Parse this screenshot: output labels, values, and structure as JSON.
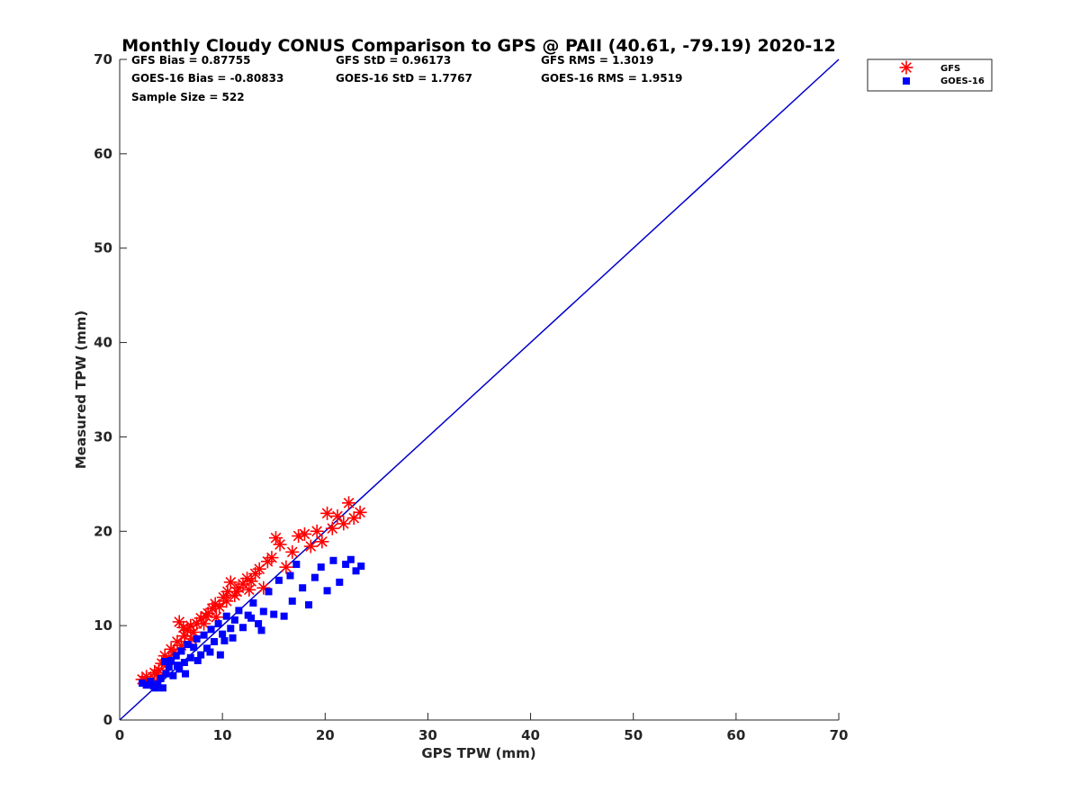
{
  "chart_data": {
    "type": "scatter",
    "title": "Monthly Cloudy CONUS Comparison to GPS @ PAII (40.61, -79.19) 2020-12",
    "xlabel": "GPS TPW (mm)",
    "ylabel": "Measured TPW (mm)",
    "xlim": [
      0,
      70
    ],
    "ylim": [
      0,
      70
    ],
    "xticks": [
      "0",
      "10",
      "20",
      "30",
      "40",
      "50",
      "60",
      "70"
    ],
    "yticks": [
      "0",
      "10",
      "20",
      "30",
      "40",
      "50",
      "60",
      "70"
    ],
    "grid": false,
    "legend_position": "top-right",
    "stats": {
      "gfs_bias": "GFS Bias = 0.87755",
      "gfs_std": "GFS StD = 0.96173",
      "gfs_rms": "GFS RMS = 1.3019",
      "goes_bias": "GOES-16 Bias = -0.80833",
      "goes_std": "GOES-16 StD = 1.7767",
      "goes_rms": "GOES-16 RMS = 1.9519",
      "sample_size": "Sample Size = 522"
    },
    "reference_line": {
      "x": [
        0,
        70
      ],
      "y": [
        0,
        70
      ],
      "color": "#0000cc"
    },
    "series": [
      {
        "name": "GFS",
        "marker": "asterisk",
        "color": "#ff0000",
        "points": [
          [
            2.2,
            4.3
          ],
          [
            2.6,
            4.6
          ],
          [
            3.0,
            4.2
          ],
          [
            3.4,
            5.0
          ],
          [
            3.8,
            5.3
          ],
          [
            4.1,
            6.0
          ],
          [
            4.4,
            6.8
          ],
          [
            4.8,
            6.5
          ],
          [
            5.0,
            7.5
          ],
          [
            5.3,
            7.2
          ],
          [
            5.6,
            8.3
          ],
          [
            5.8,
            10.4
          ],
          [
            6.0,
            7.9
          ],
          [
            6.3,
            8.9
          ],
          [
            6.6,
            9.5
          ],
          [
            6.9,
            10.0
          ],
          [
            7.2,
            9.3
          ],
          [
            7.5,
            10.2
          ],
          [
            7.9,
            10.8
          ],
          [
            8.2,
            10.2
          ],
          [
            8.6,
            11.3
          ],
          [
            9.0,
            11.8
          ],
          [
            9.3,
            12.3
          ],
          [
            9.7,
            12.0
          ],
          [
            10.1,
            13.0
          ],
          [
            10.5,
            13.6
          ],
          [
            10.8,
            14.6
          ],
          [
            11.2,
            13.2
          ],
          [
            11.6,
            14.0
          ],
          [
            12.0,
            14.4
          ],
          [
            12.4,
            15.0
          ],
          [
            12.8,
            14.7
          ],
          [
            13.2,
            15.5
          ],
          [
            13.6,
            16.0
          ],
          [
            14.0,
            14.0
          ],
          [
            14.4,
            16.8
          ],
          [
            14.8,
            17.2
          ],
          [
            15.2,
            19.3
          ],
          [
            15.6,
            18.6
          ],
          [
            16.2,
            16.2
          ],
          [
            16.8,
            17.8
          ],
          [
            17.4,
            19.5
          ],
          [
            18.0,
            19.7
          ],
          [
            18.6,
            18.4
          ],
          [
            19.2,
            20.0
          ],
          [
            19.7,
            18.9
          ],
          [
            20.2,
            21.9
          ],
          [
            20.7,
            20.3
          ],
          [
            21.2,
            21.6
          ],
          [
            21.8,
            20.8
          ],
          [
            22.3,
            23.0
          ],
          [
            22.8,
            21.4
          ],
          [
            23.4,
            22.0
          ],
          [
            6.2,
            9.8
          ],
          [
            8.4,
            11.0
          ],
          [
            10.4,
            12.6
          ],
          [
            12.6,
            13.8
          ],
          [
            3.6,
            4.8
          ],
          [
            4.6,
            5.9
          ],
          [
            7.0,
            8.6
          ],
          [
            9.4,
            10.9
          ],
          [
            11.4,
            13.6
          ]
        ]
      },
      {
        "name": "GOES-16",
        "marker": "square",
        "color": "#0000ff",
        "points": [
          [
            2.2,
            3.9
          ],
          [
            2.6,
            3.7
          ],
          [
            3.0,
            4.1
          ],
          [
            3.3,
            3.6
          ],
          [
            3.7,
            3.8
          ],
          [
            4.0,
            4.4
          ],
          [
            4.2,
            3.4
          ],
          [
            4.5,
            4.9
          ],
          [
            4.8,
            5.6
          ],
          [
            5.0,
            6.3
          ],
          [
            5.2,
            4.7
          ],
          [
            5.5,
            6.8
          ],
          [
            5.8,
            5.4
          ],
          [
            6.0,
            7.3
          ],
          [
            6.3,
            6.1
          ],
          [
            6.6,
            8.0
          ],
          [
            6.9,
            6.6
          ],
          [
            7.2,
            7.7
          ],
          [
            7.5,
            8.6
          ],
          [
            7.9,
            6.9
          ],
          [
            8.2,
            9.0
          ],
          [
            8.5,
            7.6
          ],
          [
            8.9,
            9.6
          ],
          [
            9.2,
            8.3
          ],
          [
            9.6,
            10.2
          ],
          [
            10.0,
            9.1
          ],
          [
            10.4,
            11.0
          ],
          [
            10.8,
            9.7
          ],
          [
            11.2,
            10.6
          ],
          [
            11.6,
            11.6
          ],
          [
            12.0,
            9.8
          ],
          [
            12.5,
            11.1
          ],
          [
            13.0,
            12.4
          ],
          [
            13.5,
            10.2
          ],
          [
            14.0,
            11.5
          ],
          [
            14.5,
            13.6
          ],
          [
            15.0,
            11.2
          ],
          [
            15.5,
            14.8
          ],
          [
            16.0,
            11.0
          ],
          [
            16.6,
            15.3
          ],
          [
            17.2,
            16.5
          ],
          [
            17.8,
            14.0
          ],
          [
            18.4,
            12.2
          ],
          [
            19.0,
            15.1
          ],
          [
            19.6,
            16.2
          ],
          [
            20.2,
            13.7
          ],
          [
            20.8,
            16.9
          ],
          [
            21.4,
            14.6
          ],
          [
            22.0,
            16.5
          ],
          [
            22.5,
            17.0
          ],
          [
            23.0,
            15.8
          ],
          [
            23.5,
            16.3
          ],
          [
            5.6,
            5.8
          ],
          [
            7.6,
            6.3
          ],
          [
            10.2,
            8.4
          ],
          [
            12.8,
            10.8
          ],
          [
            4.4,
            6.2
          ],
          [
            6.4,
            4.9
          ],
          [
            8.8,
            7.2
          ],
          [
            11.0,
            8.7
          ],
          [
            13.8,
            9.5
          ],
          [
            16.8,
            12.6
          ],
          [
            3.5,
            3.4
          ],
          [
            9.8,
            6.9
          ]
        ]
      }
    ]
  }
}
